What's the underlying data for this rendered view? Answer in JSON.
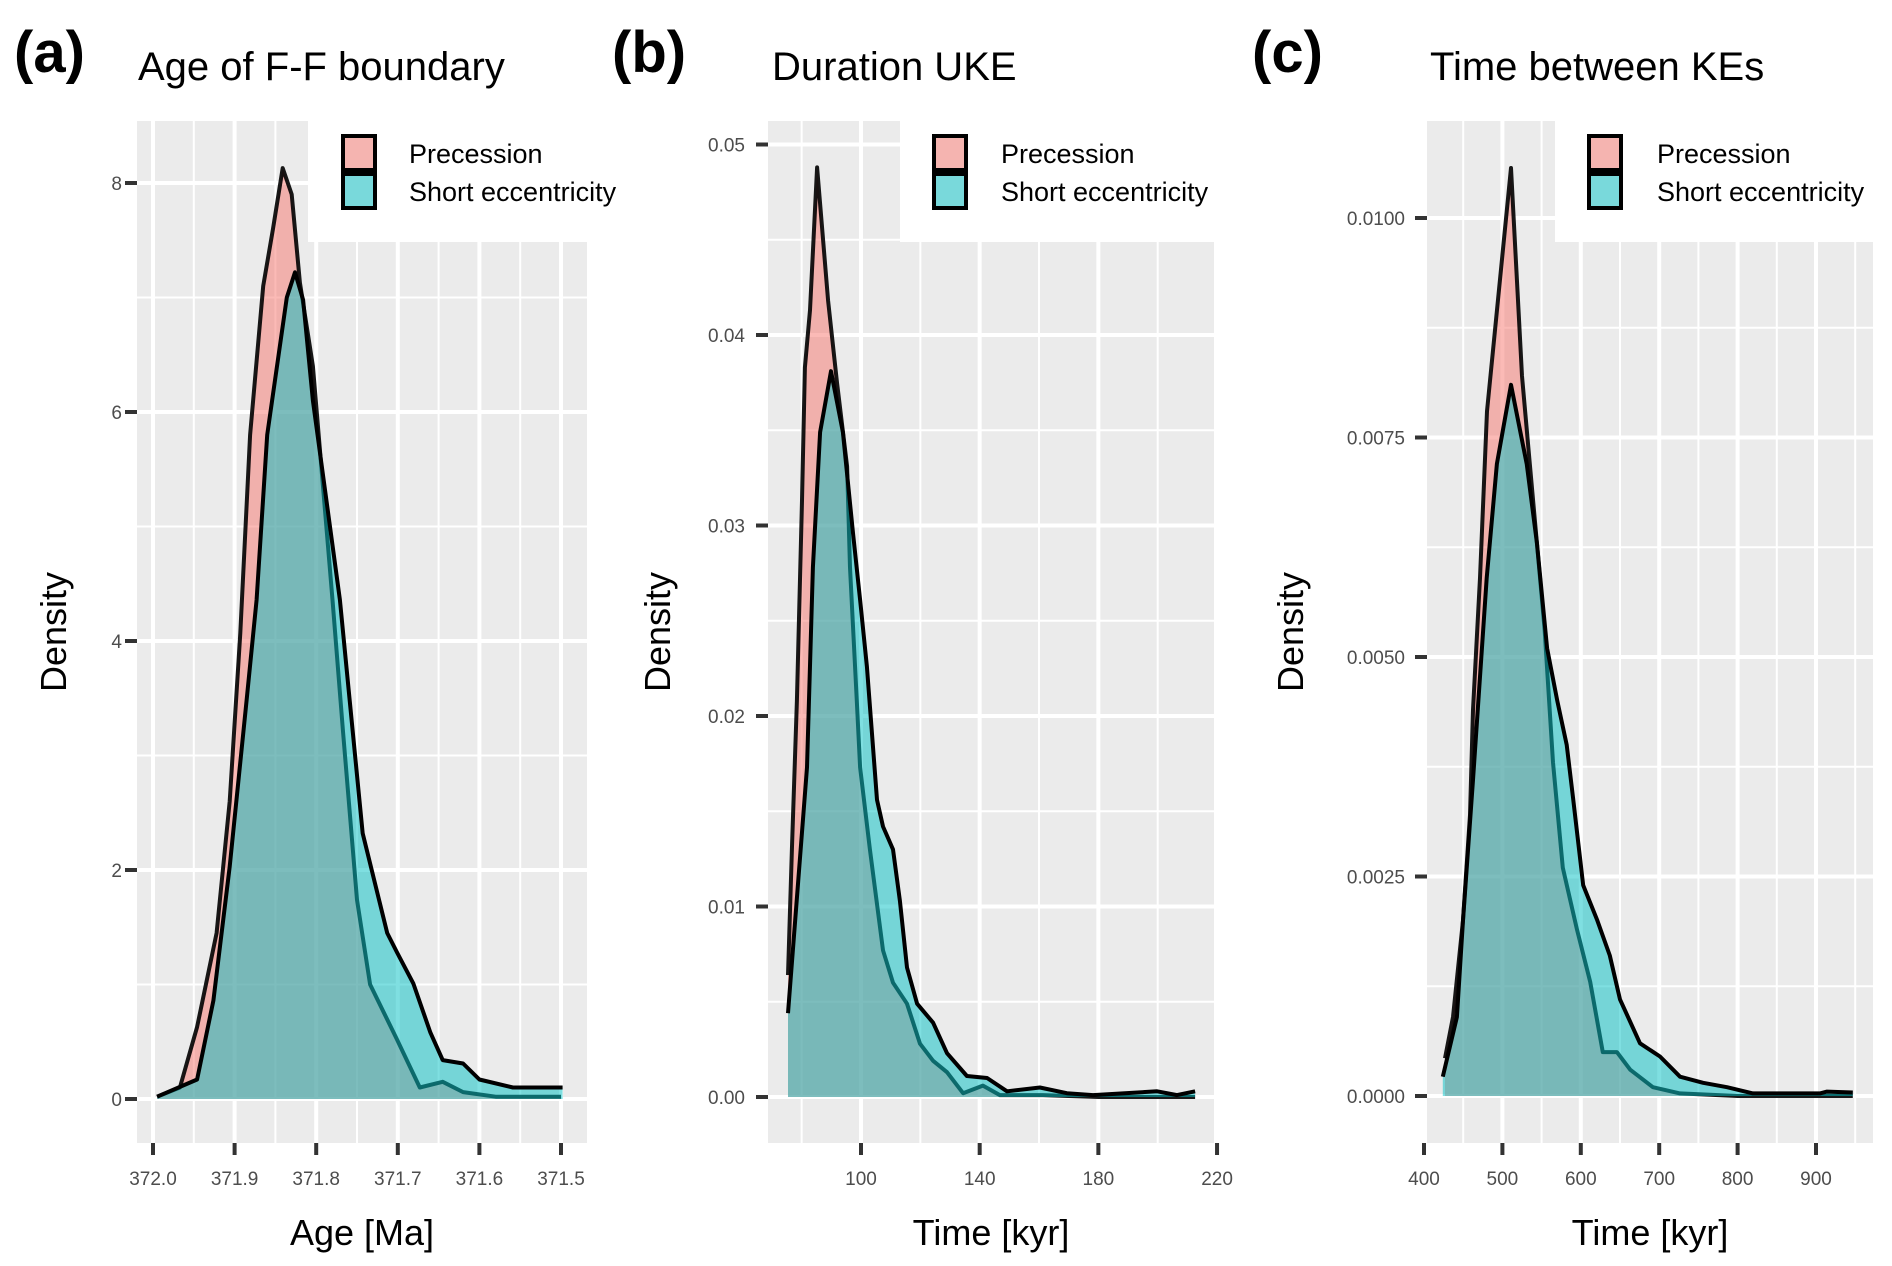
{
  "colors": {
    "precession": "#F8766D",
    "short_eccentricity": "#00BFC4",
    "panel_bg": "#EBEBEB",
    "grid": "#FFFFFF",
    "outline": "#000000"
  },
  "legend": {
    "items": [
      "Precession",
      "Short eccentricity"
    ]
  },
  "chart_data": [
    {
      "type": "area",
      "panel_label": "(a)",
      "title": "Age of F-F boundary",
      "xlabel": "Age [Ma]",
      "ylabel": "Density",
      "x_reversed": true,
      "xlim": [
        372.02,
        371.49
      ],
      "ylim": [
        -0.5,
        8.5
      ],
      "xticks": [
        372.0,
        371.9,
        371.8,
        371.7,
        371.6,
        371.5
      ],
      "xtick_labels": [
        "372.0",
        "371.9",
        "371.8",
        "371.7",
        "371.6",
        "371.5"
      ],
      "yticks": [
        0,
        2,
        4,
        6,
        8
      ],
      "ytick_labels": [
        "0",
        "2",
        "4",
        "6",
        "8"
      ],
      "grid": true,
      "legend_position": "top-right",
      "series": [
        {
          "name": "Precession",
          "x": [
            371.995,
            371.967,
            371.946,
            371.922,
            371.906,
            371.893,
            371.881,
            371.865,
            371.853,
            371.841,
            371.83,
            371.82,
            371.804,
            371.78,
            371.767,
            371.75,
            371.734,
            371.701,
            371.673,
            371.645,
            371.62,
            371.58,
            371.5
          ],
          "y": [
            0.02,
            0.1,
            0.63,
            1.45,
            2.6,
            4.07,
            5.8,
            7.1,
            7.6,
            8.13,
            7.9,
            7.13,
            6.4,
            4.36,
            3.2,
            1.74,
            1.0,
            0.52,
            0.1,
            0.15,
            0.06,
            0.02,
            0.02
          ]
        },
        {
          "name": "Short eccentricity",
          "x": [
            371.995,
            371.946,
            371.926,
            371.906,
            371.885,
            371.873,
            371.86,
            371.836,
            371.826,
            371.816,
            371.804,
            371.771,
            371.759,
            371.743,
            371.713,
            371.701,
            371.681,
            371.66,
            371.645,
            371.62,
            371.6,
            371.559,
            371.498
          ],
          "y": [
            0.02,
            0.17,
            0.86,
            2.03,
            3.5,
            4.36,
            5.8,
            7.0,
            7.22,
            6.98,
            6.1,
            4.36,
            3.48,
            2.32,
            1.45,
            1.28,
            1.01,
            0.58,
            0.34,
            0.31,
            0.17,
            0.1,
            0.1
          ]
        }
      ]
    },
    {
      "type": "area",
      "panel_label": "(b)",
      "title": "Duration UKE",
      "xlabel": "Time [kyr]",
      "ylabel": "Density",
      "xlim": [
        73,
        219
      ],
      "ylim": [
        -0.0025,
        0.0515
      ],
      "xticks": [
        100,
        140,
        180,
        220
      ],
      "xtick_labels": [
        "100",
        "140",
        "180",
        "220"
      ],
      "yticks": [
        0,
        0.01,
        0.02,
        0.03,
        0.04,
        0.05
      ],
      "ytick_labels": [
        "0.00",
        "0.01",
        "0.02",
        "0.03",
        "0.04",
        "0.05"
      ],
      "grid": true,
      "legend_position": "top-right",
      "series": [
        {
          "name": "Precession",
          "x": [
            75.4,
            76.7,
            78.4,
            80.1,
            81.1,
            82.8,
            85.2,
            88.9,
            91.9,
            95.3,
            96.3,
            98.6,
            99.7,
            103,
            107.4,
            110.8,
            115.5,
            119.9,
            124.3,
            129,
            134.4,
            141.1,
            146.8,
            155.9,
            161.3,
            180,
            200,
            212.6
          ],
          "y": [
            0.0064,
            0.013,
            0.0208,
            0.0313,
            0.0383,
            0.0413,
            0.0488,
            0.0418,
            0.0375,
            0.0331,
            0.0278,
            0.0208,
            0.0173,
            0.013,
            0.0077,
            0.006,
            0.0049,
            0.0028,
            0.0019,
            0.0013,
            0.0002,
            0.0006,
            0.0001,
            0.0001,
            0.0001,
            0.0,
            0.0,
            0.0
          ]
        },
        {
          "name": "Short eccentricity",
          "x": [
            75.4,
            81.8,
            83.8,
            86.2,
            89.9,
            93.9,
            97.3,
            99.7,
            102,
            105.4,
            107.4,
            110.8,
            113.1,
            115.5,
            118.9,
            124.3,
            129,
            135.7,
            142.5,
            149.2,
            160.3,
            169.4,
            178.2,
            199.8,
            206.5,
            212.6
          ],
          "y": [
            0.0044,
            0.0173,
            0.0278,
            0.0349,
            0.0381,
            0.0349,
            0.0296,
            0.0261,
            0.0226,
            0.0156,
            0.0142,
            0.013,
            0.0103,
            0.0068,
            0.0049,
            0.0039,
            0.0023,
            0.0011,
            0.001,
            0.0003,
            0.0005,
            0.0002,
            0.0001,
            0.0003,
            0.0001,
            0.0003
          ]
        }
      ]
    },
    {
      "type": "area",
      "panel_label": "(c)",
      "title": "Time between KEs",
      "xlabel": "Time [kyr]",
      "ylabel": "Density",
      "xlim": [
        396,
        965
      ],
      "ylim": [
        -0.00055,
        0.0111
      ],
      "xticks": [
        400,
        500,
        600,
        700,
        800,
        900
      ],
      "xtick_labels": [
        "400",
        "500",
        "600",
        "700",
        "800",
        "900"
      ],
      "yticks": [
        0,
        0.0025,
        0.005,
        0.0075,
        0.01
      ],
      "ytick_labels": [
        "0.0000",
        "0.0025",
        "0.0050",
        "0.0075",
        "0.0100"
      ],
      "grid": true,
      "legend_position": "top-right",
      "series": [
        {
          "name": "Precession",
          "x": [
            426.8,
            437,
            449.7,
            458.7,
            462.5,
            471.4,
            480.4,
            511,
            525,
            535,
            544,
            554,
            564.5,
            577,
            595,
            612,
            628,
            646,
            663,
            692,
            726.5,
            800,
            900,
            947
          ],
          "y": [
            0.00043,
            0.0009,
            0.002,
            0.0032,
            0.0044,
            0.0059,
            0.0078,
            0.01057,
            0.0082,
            0.0072,
            0.0063,
            0.0053,
            0.0038,
            0.0026,
            0.0019,
            0.0013,
            0.0005,
            0.0005,
            0.0003,
            0.0001,
            3e-05,
            0.0,
            0.0,
            0.0
          ]
        },
        {
          "name": "Short eccentricity",
          "x": [
            424,
            442,
            449.7,
            462.5,
            480,
            493,
            511,
            531,
            544,
            557,
            570,
            582,
            590,
            603,
            621,
            637,
            650,
            675.5,
            701,
            726.5,
            756,
            786.5,
            819.6,
            905,
            914,
            947
          ],
          "y": [
            0.00022,
            0.0009,
            0.002,
            0.0036,
            0.0059,
            0.0072,
            0.0081,
            0.0072,
            0.0063,
            0.0051,
            0.0045,
            0.004,
            0.0034,
            0.0024,
            0.002,
            0.0016,
            0.0011,
            0.0006,
            0.00045,
            0.00022,
            0.00015,
            0.0001,
            3e-05,
            3e-05,
            5e-05,
            4e-05
          ]
        }
      ]
    }
  ]
}
